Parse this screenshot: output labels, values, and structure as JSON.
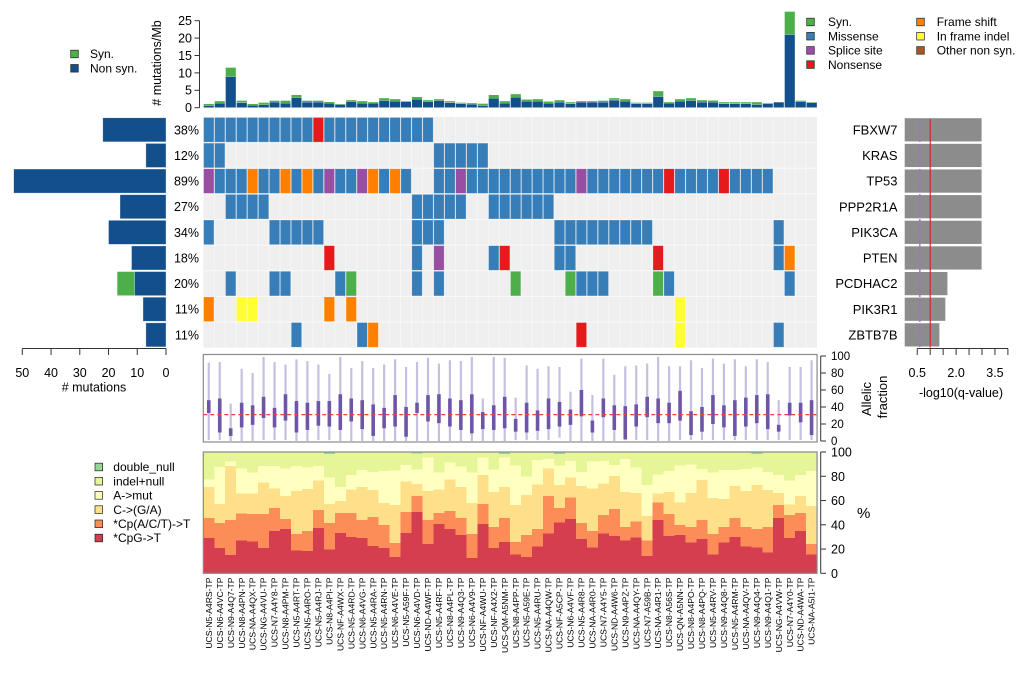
{
  "samples": [
    "UCS-N5-A4RS-TP",
    "UCS-N6-A4VC-TP",
    "UCS-N9-A4Q7-TP",
    "UCS-N8-A4PN-TP",
    "UCS-NA-A4QX-TP",
    "UCS-NG-A4VU-TP",
    "UCS-N7-A4Y8-TP",
    "UCS-N8-A4PM-TP",
    "UCS-N5-A4RT-TP",
    "UCS-N5-A4RO-TP",
    "UCS-N5-A4RJ-TP",
    "UCS-N8-A4PI-TP",
    "UCS-NF-A4WX-TP",
    "UCS-N5-A4RD-TP",
    "UCS-N6-A4VG-TP",
    "UCS-N5-A4RA-TP",
    "UCS-N5-A4RN-TP",
    "UCS-N6-A4VE-TP",
    "UCS-N5-A59F-TP",
    "UCS-N6-A4VD-TP",
    "UCS-ND-A4WF-TP",
    "UCS-N5-A4RF-TP",
    "UCS-N8-A4PL-TP",
    "UCS-N9-A4Q3-TP",
    "UCS-N6-A4V9-TP",
    "UCS-NF-A4WU-TP",
    "UCS-NF-A4X2-TP",
    "UCS-QM-A5NM-TP",
    "UCS-N8-A4PP-TP",
    "UCS-N5-A59E-TP",
    "UCS-N5-A4RU-TP",
    "UCS-NA-A4QW-TP",
    "UCS-NF-A5CP-TP",
    "UCS-N6-A4VF-TP",
    "UCS-N5-A4R8-TP",
    "UCS-NA-A4R0-TP",
    "UCS-N7-A4Y5-TP",
    "UCS-ND-A4W6-TP",
    "UCS-N9-A4PZ-TP",
    "UCS-NA-A4QY-TP",
    "UCS-N7-A59B-TP",
    "UCS-NA-A4R1-TP",
    "UCS-N8-A56S-TP",
    "UCS-QN-A5NN-TP",
    "UCS-N8-A4PO-TP",
    "UCS-N8-A4PQ-TP",
    "UCS-N5-A4RV-TP",
    "UCS-N9-A4Q8-TP",
    "UCS-N5-A4RM-TP",
    "UCS-NA-A4QV-TP",
    "UCS-N9-A4Q4-TP",
    "UCS-N9-A4Q1-TP",
    "UCS-NG-A4VW-TP",
    "UCS-N7-A4Y0-TP",
    "UCS-ND-A4WA-TP",
    "UCS-NA-A5I1-TP"
  ],
  "legend_top_left": [
    {
      "label": "Syn.",
      "color": "#4DAF4A"
    },
    {
      "label": "Non syn.",
      "color": "#13508B"
    }
  ],
  "legend_mutation_types": [
    {
      "code": "Y",
      "label": "Syn.",
      "color": "#4DAF4A"
    },
    {
      "code": "M",
      "label": "Missense",
      "color": "#377EB8"
    },
    {
      "code": "S",
      "label": "Splice site",
      "color": "#984EA3"
    },
    {
      "code": "N",
      "label": "Nonsense",
      "color": "#E41A1C"
    },
    {
      "code": "F",
      "label": "Frame shift",
      "color": "#FF7F00"
    },
    {
      "code": "I",
      "label": "In frame indel",
      "color": "#FFFF33"
    },
    {
      "code": "O",
      "label": "Other non syn.",
      "color": "#A65628"
    }
  ],
  "chart_data": [
    {
      "id": "mutation_rate",
      "type": "bar",
      "stacked": true,
      "title": "",
      "xlabel": "",
      "ylabel": "# mutations/Mb",
      "ylim": [
        0,
        25
      ],
      "yticks": [
        0,
        5,
        10,
        15,
        20,
        25
      ],
      "categories_ref": "samples",
      "series": [
        {
          "name": "Non syn.",
          "color": "#13508B",
          "values": [
            0.6,
            1.3,
            8.9,
            1.5,
            0.7,
            0.8,
            1.6,
            1.3,
            2.9,
            1.6,
            1.6,
            1.3,
            0.9,
            1.7,
            1.3,
            1.3,
            2.0,
            1.9,
            1.7,
            2.4,
            1.7,
            2.0,
            1.5,
            1.2,
            1.0,
            0.6,
            2.7,
            1.3,
            3.0,
            1.8,
            1.8,
            1.3,
            1.6,
            1.2,
            1.6,
            1.6,
            1.6,
            2.2,
            1.8,
            1.2,
            1.2,
            3.2,
            1.3,
            1.8,
            2.0,
            1.6,
            1.6,
            1.2,
            1.2,
            1.2,
            0.9,
            1.2,
            1.6,
            21.0,
            1.7,
            1.5
          ]
        },
        {
          "name": "Syn.",
          "color": "#4DAF4A",
          "values": [
            0.5,
            0.6,
            2.6,
            0.5,
            0.4,
            0.7,
            0.4,
            0.7,
            0.8,
            0.4,
            0.4,
            0.4,
            0.2,
            0.5,
            0.6,
            0.3,
            0.8,
            0.6,
            0.2,
            0.7,
            0.5,
            0.5,
            0.4,
            0.3,
            0.3,
            0.6,
            1.0,
            0.6,
            0.9,
            0.6,
            0.7,
            0.5,
            0.6,
            0.4,
            0.3,
            0.3,
            0.4,
            0.6,
            0.7,
            0.3,
            0.3,
            1.6,
            0.3,
            0.7,
            0.8,
            0.6,
            0.5,
            0.4,
            0.4,
            0.4,
            0.7,
            0.1,
            0.1,
            6.6,
            0.3,
            0.2
          ]
        }
      ]
    },
    {
      "id": "oncoprint",
      "type": "heatmap",
      "rows": [
        "FBXW7",
        "KRAS",
        "TP53",
        "PPP2R1A",
        "PIK3CA",
        "PTEN",
        "PCDHAC2",
        "PIK3R1",
        "ZBTB7B"
      ],
      "percent_labels": [
        "38%",
        "12%",
        "89%",
        "27%",
        "34%",
        "18%",
        "20%",
        "11%",
        "11%"
      ],
      "cell_codes": {
        ".": "none",
        "Y": "Syn.",
        "M": "Missense",
        "S": "Splice site",
        "N": "Nonsense",
        "F": "Frame shift",
        "I": "In frame indel",
        "O": "Other non syn."
      },
      "background_color": "#EFEFEF",
      "cells": [
        "MMMMMMMMMMNMMMMMMMMMM...................................",
        "MM...................MMMMM..............................",
        "SMMMFMMFMFMSMMSFMFM..MMSMMMMMMMMMMSMMMMMMMNMMMMNMMMM....",
        "..MMMM.............MMMMM..MMMMMM........................",
        "M.....MMMMM........MMM..........MMMMMMMMM...........M...",
        "...........N.......M.S....MN....MM.......N..........MF..",
        "..M...MM....MY.....M.M......Y....YMMM....YM..........M..",
        "F..II......F.F.............................I............",
        "........M.....MF..................N........I........M..."
      ]
    },
    {
      "id": "gene_mutation_counts",
      "type": "bar",
      "orientation": "horizontal",
      "stacked": true,
      "xlabel": "# mutations",
      "xlim": [
        50,
        0
      ],
      "xticks": [
        50,
        40,
        30,
        20,
        10,
        0
      ],
      "categories_ref": "chart_data.1.rows",
      "series": [
        {
          "name": "Non syn.",
          "color": "#13508B",
          "values": [
            22,
            7,
            53,
            16,
            20,
            12,
            11,
            8,
            7
          ]
        },
        {
          "name": "Syn.",
          "color": "#4DAF4A",
          "values": [
            0,
            0,
            0,
            0,
            0,
            0,
            6,
            0,
            0
          ]
        }
      ]
    },
    {
      "id": "significance",
      "type": "bar",
      "orientation": "horizontal",
      "xlabel": "-log10(q-value)",
      "xlim": [
        0,
        4
      ],
      "xticks": [
        0.5,
        1.0,
        1.5,
        2.0,
        2.5,
        3.0,
        3.5,
        4.0
      ],
      "xtick_labels": [
        "0.5",
        "",
        "",
        "2.0",
        "",
        "",
        "3.5",
        ""
      ],
      "bar_color": "#8C8C8C",
      "categories_ref": "chart_data.1.rows",
      "values": [
        3.0,
        3.0,
        3.0,
        3.0,
        3.0,
        3.0,
        1.68,
        1.6,
        1.37
      ],
      "reference_lines": [
        {
          "value": 0.6,
          "style": "dashed",
          "color": "#9B72CF"
        },
        {
          "value": 1.0,
          "style": "solid",
          "color": "#E31A1C"
        }
      ]
    },
    {
      "id": "allelic_fraction",
      "type": "box",
      "ylabel_lines": [
        "Allelic",
        "fraction"
      ],
      "ylim": [
        0,
        100
      ],
      "yticks": [
        0,
        20,
        40,
        60,
        80,
        100
      ],
      "whisker_color": "#C4C1E0",
      "box_color": "#6E55A8",
      "median_reference": {
        "value": 31,
        "color": "#E8453C",
        "style": "dashed"
      },
      "whisker_low": [
        1,
        1,
        0,
        0,
        0,
        1,
        1,
        1,
        0,
        0,
        1,
        1,
        0,
        0,
        0,
        0,
        0,
        0,
        0,
        0,
        0,
        0,
        0,
        0,
        0,
        0,
        0,
        0,
        1,
        1,
        1,
        1,
        4,
        0,
        0,
        0,
        0,
        0,
        1,
        1,
        1,
        0,
        0,
        1,
        1,
        1,
        1,
        1,
        1,
        1,
        1,
        1,
        1,
        1,
        1,
        1
      ],
      "box_low": [
        33,
        10,
        6,
        16,
        19,
        27,
        16,
        24,
        10,
        13,
        18,
        17,
        13,
        23,
        14,
        6,
        15,
        17,
        5,
        33,
        23,
        21,
        17,
        13,
        9,
        14,
        13,
        15,
        11,
        10,
        12,
        14,
        17,
        19,
        29,
        10,
        28,
        13,
        2,
        17,
        28,
        21,
        21,
        24,
        7,
        11,
        20,
        16,
        6,
        17,
        21,
        14,
        11,
        30,
        22,
        7
      ],
      "box_high": [
        48,
        50,
        15,
        45,
        42,
        52,
        39,
        55,
        47,
        45,
        47,
        47,
        55,
        50,
        48,
        43,
        39,
        54,
        40,
        45,
        54,
        55,
        50,
        48,
        55,
        34,
        42,
        52,
        26,
        45,
        36,
        50,
        46,
        37,
        60,
        24,
        50,
        42,
        41,
        43,
        52,
        50,
        45,
        59,
        35,
        40,
        54,
        42,
        48,
        51,
        54,
        55,
        19,
        45,
        45,
        48
      ],
      "whisker_high": [
        92,
        93,
        44,
        85,
        80,
        99,
        93,
        90,
        96,
        94,
        90,
        79,
        99,
        86,
        94,
        86,
        90,
        96,
        87,
        93,
        98,
        91,
        95,
        94,
        99,
        50,
        99,
        98,
        51,
        89,
        85,
        88,
        87,
        58,
        97,
        54,
        97,
        78,
        88,
        89,
        91,
        99,
        88,
        88,
        95,
        86,
        97,
        91,
        96,
        88,
        96,
        93,
        48,
        87,
        87,
        95
      ]
    },
    {
      "id": "mutation_spectrum",
      "type": "bar",
      "stacked": true,
      "ylabel": "%",
      "ylim": [
        0,
        100
      ],
      "yticks": [
        0,
        20,
        40,
        60,
        80,
        100
      ],
      "series": [
        {
          "name": "double_null",
          "color": "#99D594",
          "values": [
            0,
            0,
            0,
            0,
            0,
            0,
            0,
            0,
            0,
            0,
            0,
            1.7,
            0,
            0,
            0,
            0,
            0,
            0,
            0,
            1.2,
            0,
            0,
            0,
            0,
            0,
            0,
            0,
            1.7,
            0,
            0,
            0,
            0,
            1.7,
            0,
            0,
            0,
            0,
            0,
            0,
            0,
            0,
            0,
            0,
            0,
            0,
            0,
            0,
            0,
            0,
            0,
            1.7,
            0,
            0,
            0,
            0,
            0
          ]
        },
        {
          "name": "indel+null",
          "color": "#E6F598",
          "values": [
            22.6,
            12.4,
            7.8,
            13.5,
            17.1,
            11.6,
            11.6,
            13.5,
            11.6,
            12.9,
            11.6,
            19.5,
            28.7,
            19.0,
            14.9,
            16.3,
            15.7,
            15.4,
            10.7,
            13.1,
            4.7,
            16.8,
            8.8,
            12.1,
            17.1,
            4.7,
            14.3,
            3.0,
            11.3,
            20.4,
            6.6,
            5.8,
            9.6,
            7.4,
            16.3,
            8.0,
            7.4,
            10.7,
            5.8,
            12.9,
            27.3,
            18.5,
            15.7,
            11.3,
            10.2,
            14.0,
            17.1,
            14.9,
            14.9,
            14.0,
            11.2,
            16.3,
            19.0,
            23.7,
            19.0,
            15.7
          ]
        },
        {
          "name": "A->mut",
          "color": "#FFFFBF",
          "values": [
            6.1,
            30.6,
            3.8,
            20.7,
            17.1,
            13.7,
            18.4,
            22.9,
            20.6,
            17.7,
            12.1,
            21.8,
            11.5,
            11.9,
            13.8,
            15.1,
            26.2,
            28.4,
            13.8,
            12.1,
            27.3,
            14.1,
            13.8,
            16.6,
            24.8,
            14.3,
            18.5,
            24.0,
            32.5,
            15.1,
            20.1,
            7.7,
            16.0,
            13.5,
            11.8,
            22.0,
            18.5,
            9.1,
            27.0,
            20.7,
            25.4,
            15.7,
            17.1,
            30.3,
            23.4,
            9.1,
            20.7,
            24.0,
            13.2,
            18.2,
            14.4,
            15.1,
            14.6,
            19.5,
            17.4,
            28.9
          ]
        },
        {
          "name": "C->(G/A)",
          "color": "#FEE08B",
          "values": [
            25.6,
            15.4,
            44.6,
            16.5,
            17.1,
            26.0,
            16.0,
            19.0,
            35.6,
            34.7,
            24.2,
            15.4,
            9.9,
            19.2,
            27.5,
            22.0,
            18.4,
            31.1,
            24.8,
            9.7,
            24.2,
            19.2,
            25.9,
            25.6,
            25.9,
            24.0,
            28.9,
            25.6,
            30.3,
            33.1,
            36.9,
            22.9,
            18.7,
            16.6,
            30.3,
            35.3,
            26.1,
            27.3,
            28.9,
            23.7,
            20.1,
            7.4,
            18.5,
            18.7,
            28.1,
            33.1,
            30.0,
            22.8,
            26.2,
            29.5,
            36.3,
            30.3,
            10.2,
            8.8,
            13.7,
            31.4
          ]
        },
        {
          "name": "*Cp(A/C/T)->T",
          "color": "#FC8D59",
          "values": [
            16.5,
            20.7,
            28.9,
            22.1,
            22.3,
            27.8,
            19.3,
            8.2,
            13.2,
            16.5,
            14.6,
            21.8,
            16.6,
            19.9,
            14.6,
            24.0,
            18.8,
            11.6,
            17.4,
            13.2,
            19.8,
            9.4,
            15.1,
            14.3,
            19.5,
            16.5,
            17.4,
            19.8,
            10.5,
            17.9,
            14.1,
            30.8,
            12.1,
            17.9,
            13.5,
            13.5,
            15.2,
            22.3,
            11.1,
            13.3,
            12.9,
            14.6,
            17.9,
            8.3,
            13.0,
            15.7,
            16.5,
            13.0,
            15.7,
            16.0,
            15.2,
            21.2,
            10.5,
            18.8,
            15.2,
            8.6
          ]
        },
        {
          "name": "*CpG->T",
          "color": "#D53E4F",
          "values": [
            29.2,
            20.9,
            14.9,
            27.2,
            26.4,
            20.9,
            34.7,
            36.4,
            19.0,
            18.2,
            37.5,
            19.8,
            33.3,
            30.0,
            29.2,
            22.6,
            20.9,
            13.5,
            33.3,
            50.7,
            24.0,
            40.5,
            36.4,
            31.4,
            12.7,
            40.5,
            20.9,
            25.9,
            15.4,
            13.5,
            22.3,
            32.8,
            41.9,
            44.6,
            28.1,
            21.2,
            32.8,
            30.6,
            27.2,
            29.4,
            14.3,
            43.8,
            30.8,
            31.4,
            25.3,
            28.1,
            15.7,
            25.3,
            30.0,
            22.3,
            21.2,
            17.1,
            45.7,
            29.2,
            34.7,
            15.4
          ]
        }
      ]
    }
  ]
}
